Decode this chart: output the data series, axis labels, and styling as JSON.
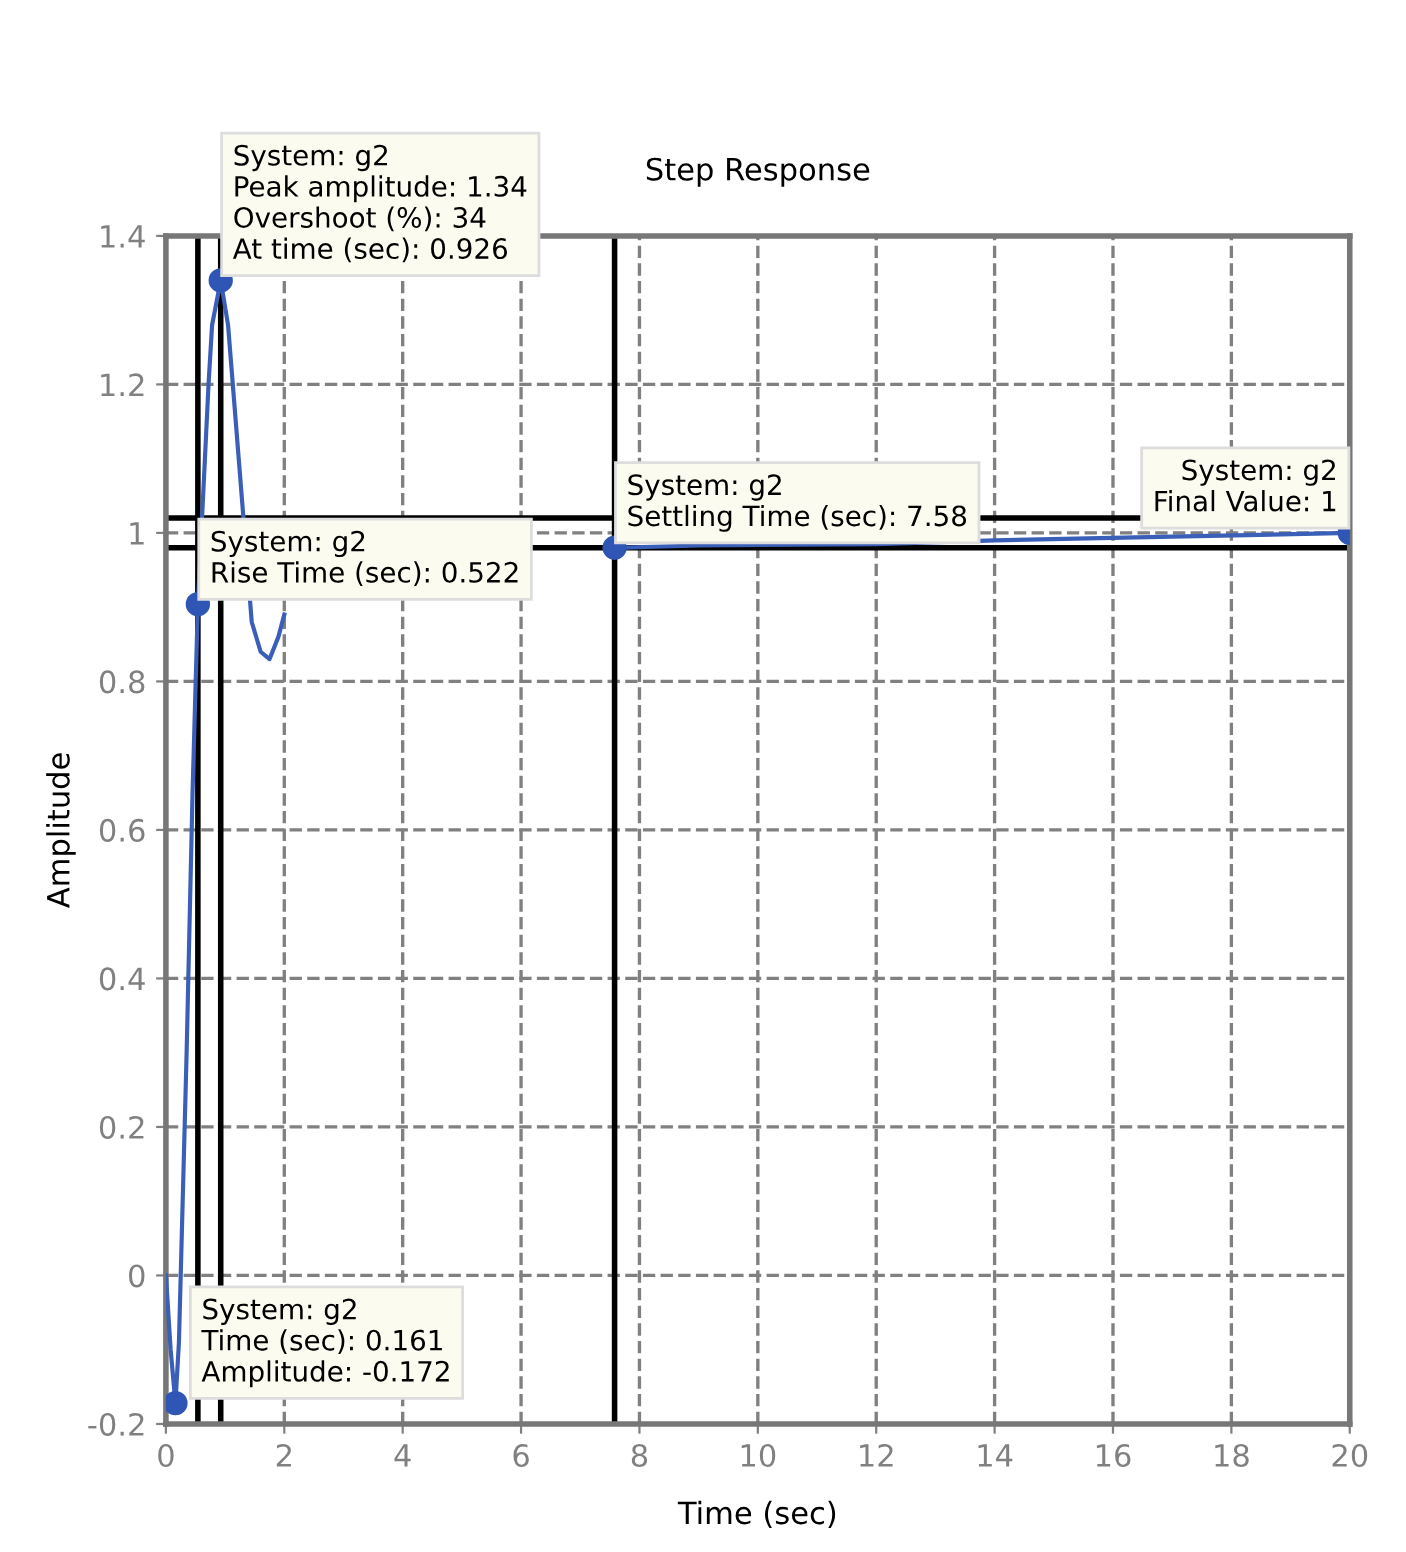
{
  "chart_data": {
    "type": "line",
    "title": "Step Response",
    "xlabel": "Time (sec)",
    "ylabel": "Amplitude",
    "xlim": [
      0,
      20
    ],
    "xticks": [
      0,
      2,
      4,
      6,
      8,
      10,
      12,
      14,
      16,
      18,
      20
    ],
    "ylim": [
      -0.2,
      1.4
    ],
    "yticks": [
      -0.2,
      0,
      0.2,
      0.4,
      0.6,
      0.8,
      1,
      1.2,
      1.4
    ],
    "grid": true,
    "line_style": "solid",
    "marker": "none",
    "series": [
      {
        "color": "#3a5fb8",
        "x": [
          0,
          0.08,
          0.161,
          0.22,
          0.35,
          0.45,
          0.54,
          0.72,
          0.78,
          0.926,
          1.05,
          1.15,
          1.45,
          1.6,
          1.75,
          1.9,
          2.0,
          4.0,
          7.58,
          9,
          12,
          14,
          17,
          20
        ],
        "values": [
          0,
          -0.1,
          -0.172,
          -0.09,
          0.3,
          0.65,
          0.904,
          1.2,
          1.28,
          1.34,
          1.28,
          1.18,
          0.88,
          0.84,
          0.83,
          0.86,
          0.89,
          null,
          0.98,
          0.983,
          0.985,
          0.99,
          0.995,
          1.0
        ]
      },
      {
        "type": "scatter",
        "color": "#2f55b5",
        "marker": "circle",
        "x": [
          0.161,
          0.54,
          0.926,
          7.58,
          20
        ],
        "values": [
          -0.172,
          0.904,
          1.34,
          0.98,
          1.0
        ]
      }
    ],
    "ref_lines": [
      {
        "axis": "y",
        "value": 0.98,
        "color": "#000000"
      },
      {
        "axis": "y",
        "value": 1.02,
        "color": "#000000"
      },
      {
        "axis": "x",
        "value": 0.54,
        "color": "#000000"
      },
      {
        "axis": "x",
        "value": 0.926,
        "color": "#000000"
      },
      {
        "axis": "x",
        "value": 7.58,
        "color": "#000000"
      }
    ],
    "annotations": [
      {
        "text": "System: g2\nTime (sec): 0.161\nAmplitude: -0.172",
        "x": 0.161,
        "y": -0.172
      },
      {
        "text": "System: g2\nRise Time (sec): 0.522",
        "x": 0.54,
        "y": 0.904
      },
      {
        "text": "System: g2\nPeak amplitude: 1.34\nOvershoot (%): 34\nAt time (sec): 0.926",
        "x": 0.926,
        "y": 1.34
      },
      {
        "text": "System: g2\nSettling Time (sec): 7.58",
        "x": 7.58,
        "y": 0.98
      },
      {
        "text": "System: g2\nFinal Value: 1",
        "x": 20,
        "y": 1.0
      }
    ]
  }
}
